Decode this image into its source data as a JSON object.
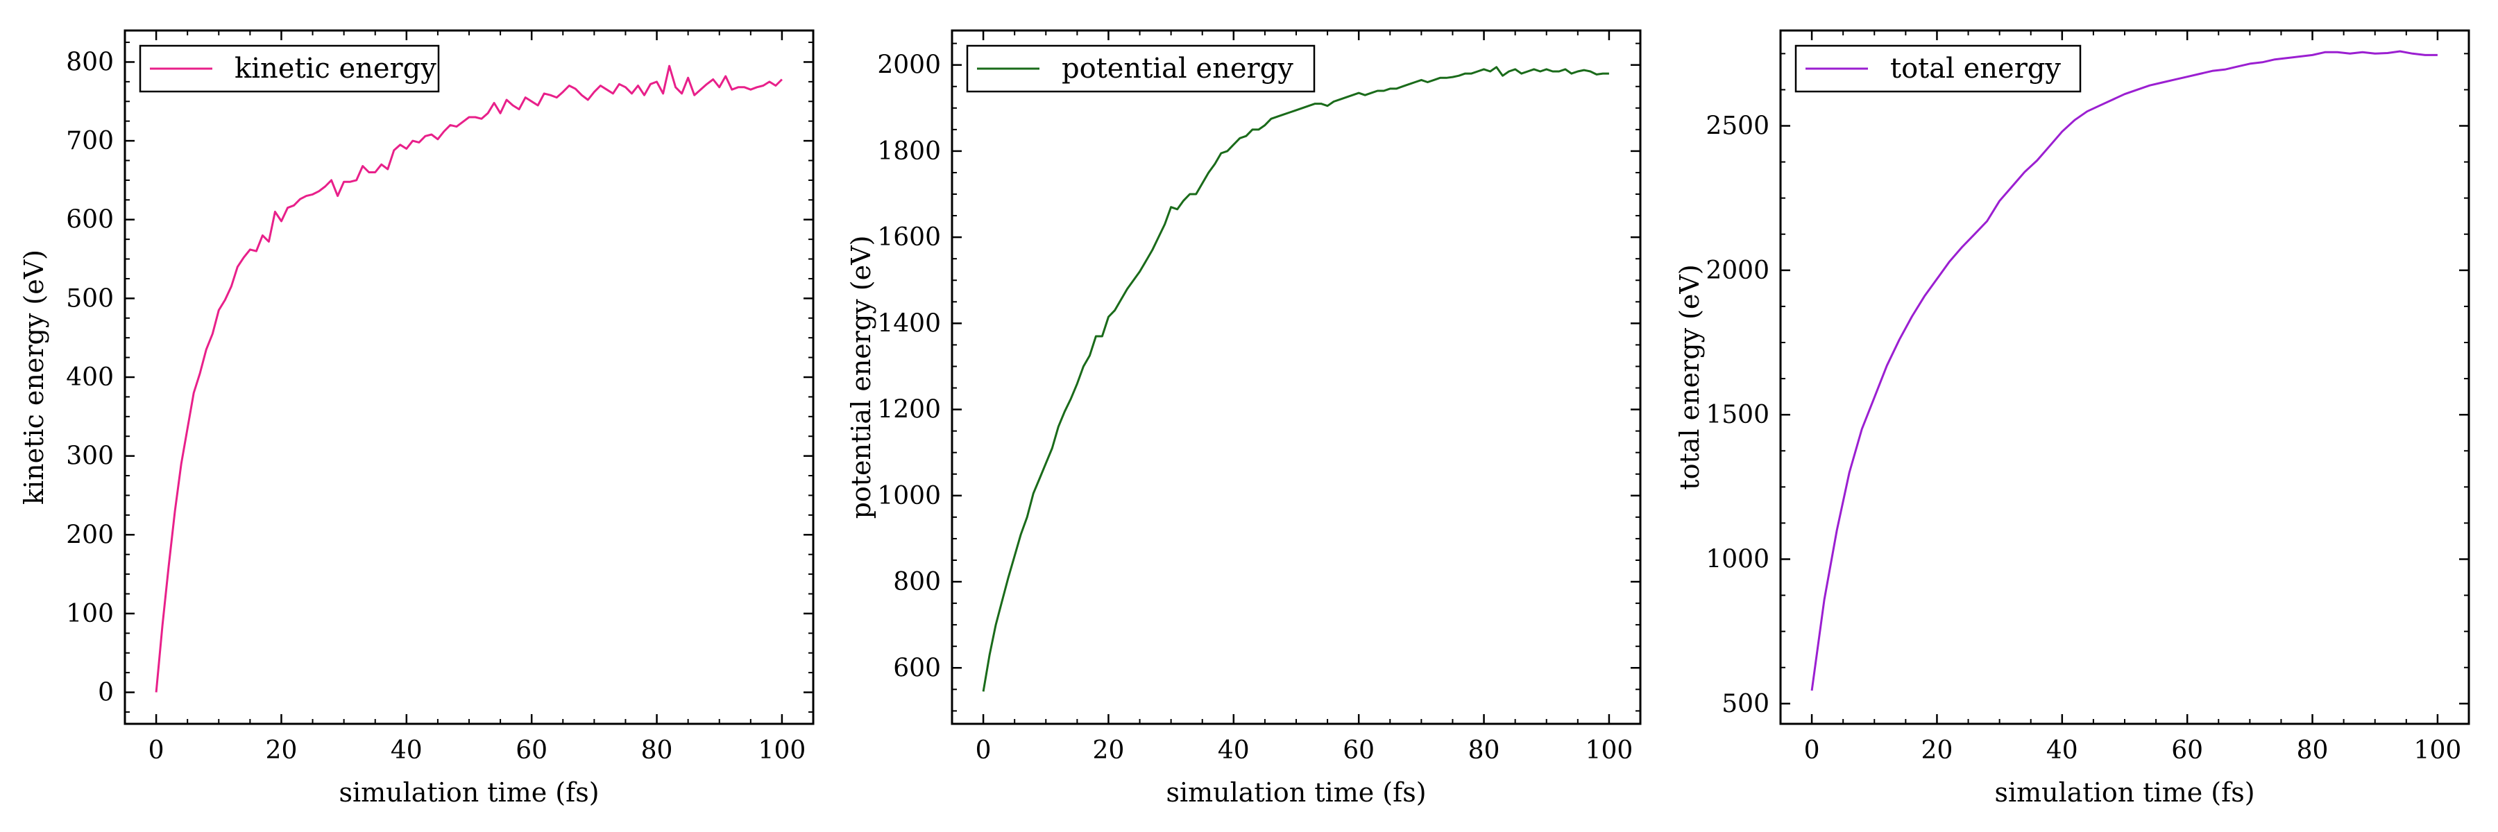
{
  "chart_data": [
    {
      "type": "line",
      "xlabel": "simulation time (fs)",
      "ylabel": "kinetic energy (eV)",
      "xlim": [
        -5,
        105
      ],
      "ylim": [
        -40,
        840
      ],
      "xticks": [
        0,
        20,
        40,
        60,
        80,
        100
      ],
      "yticks": [
        0,
        100,
        200,
        300,
        400,
        500,
        600,
        700,
        800
      ],
      "legend_position": "top-left",
      "grid": false,
      "series": [
        {
          "name": "kinetic energy",
          "color": "#e8208a",
          "x": [
            0,
            1,
            2,
            3,
            4,
            5,
            6,
            7,
            8,
            9,
            10,
            11,
            12,
            13,
            14,
            15,
            16,
            17,
            18,
            19,
            20,
            21,
            22,
            23,
            24,
            25,
            26,
            27,
            28,
            29,
            30,
            31,
            32,
            33,
            34,
            35,
            36,
            37,
            38,
            39,
            40,
            41,
            42,
            43,
            44,
            45,
            46,
            47,
            48,
            49,
            50,
            51,
            52,
            53,
            54,
            55,
            56,
            57,
            58,
            59,
            60,
            61,
            62,
            63,
            64,
            65,
            66,
            67,
            68,
            69,
            70,
            71,
            72,
            73,
            74,
            75,
            76,
            77,
            78,
            79,
            80,
            81,
            82,
            83,
            84,
            85,
            86,
            87,
            88,
            89,
            90,
            91,
            92,
            93,
            94,
            95,
            96,
            97,
            98,
            99,
            100
          ],
          "y": [
            0,
            85,
            160,
            230,
            290,
            335,
            380,
            405,
            435,
            455,
            485,
            498,
            515,
            540,
            552,
            562,
            560,
            580,
            572,
            610,
            598,
            615,
            618,
            626,
            630,
            632,
            636,
            642,
            650,
            630,
            648,
            648,
            650,
            668,
            660,
            660,
            670,
            664,
            688,
            695,
            690,
            700,
            698,
            706,
            708,
            702,
            712,
            720,
            718,
            724,
            730,
            730,
            728,
            735,
            748,
            735,
            752,
            745,
            740,
            755,
            750,
            745,
            760,
            758,
            755,
            762,
            770,
            766,
            758,
            752,
            762,
            770,
            765,
            760,
            772,
            768,
            760,
            770,
            758,
            772,
            775,
            760,
            795,
            768,
            760,
            780,
            758,
            765,
            772,
            778,
            768,
            782,
            765,
            768,
            768,
            765,
            768,
            770,
            775,
            770,
            778
          ]
        }
      ]
    },
    {
      "type": "line",
      "xlabel": "simulation time (fs)",
      "ylabel": "potential energy (eV)",
      "xlim": [
        -5,
        105
      ],
      "ylim": [
        470,
        2080
      ],
      "xticks": [
        0,
        20,
        40,
        60,
        80,
        100
      ],
      "yticks": [
        600,
        800,
        1000,
        1200,
        1400,
        1600,
        1800,
        2000
      ],
      "legend_position": "top-left",
      "grid": false,
      "series": [
        {
          "name": "potential energy",
          "color": "#1a6b1a",
          "x": [
            0,
            1,
            2,
            3,
            4,
            5,
            6,
            7,
            8,
            9,
            10,
            11,
            12,
            13,
            14,
            15,
            16,
            17,
            18,
            19,
            20,
            21,
            22,
            23,
            24,
            25,
            26,
            27,
            28,
            29,
            30,
            31,
            32,
            33,
            34,
            35,
            36,
            37,
            38,
            39,
            40,
            41,
            42,
            43,
            44,
            45,
            46,
            47,
            48,
            49,
            50,
            51,
            52,
            53,
            54,
            55,
            56,
            57,
            58,
            59,
            60,
            61,
            62,
            63,
            64,
            65,
            66,
            67,
            68,
            69,
            70,
            71,
            72,
            73,
            74,
            75,
            76,
            77,
            78,
            79,
            80,
            81,
            82,
            83,
            84,
            85,
            86,
            87,
            88,
            89,
            90,
            91,
            92,
            93,
            94,
            95,
            96,
            97,
            98,
            99,
            100
          ],
          "y": [
            545,
            630,
            700,
            755,
            810,
            860,
            910,
            950,
            1005,
            1040,
            1075,
            1110,
            1160,
            1195,
            1225,
            1260,
            1300,
            1325,
            1370,
            1370,
            1415,
            1430,
            1455,
            1480,
            1500,
            1520,
            1545,
            1570,
            1600,
            1630,
            1670,
            1665,
            1685,
            1700,
            1700,
            1725,
            1750,
            1770,
            1795,
            1800,
            1815,
            1830,
            1835,
            1850,
            1850,
            1860,
            1875,
            1880,
            1885,
            1890,
            1895,
            1900,
            1905,
            1910,
            1910,
            1905,
            1915,
            1920,
            1925,
            1930,
            1935,
            1930,
            1935,
            1940,
            1940,
            1945,
            1945,
            1950,
            1955,
            1960,
            1965,
            1960,
            1965,
            1970,
            1970,
            1972,
            1975,
            1980,
            1980,
            1985,
            1990,
            1985,
            1995,
            1975,
            1985,
            1990,
            1980,
            1985,
            1990,
            1985,
            1990,
            1985,
            1985,
            1990,
            1980,
            1985,
            1988,
            1985,
            1978,
            1980,
            1980
          ]
        }
      ]
    },
    {
      "type": "line",
      "xlabel": "simulation time (fs)",
      "ylabel": "total energy (eV)",
      "xlim": [
        -5,
        105
      ],
      "ylim": [
        430,
        2830
      ],
      "xticks": [
        0,
        20,
        40,
        60,
        80,
        100
      ],
      "yticks": [
        500,
        1000,
        1500,
        2000,
        2500
      ],
      "legend_position": "top-left",
      "grid": false,
      "series": [
        {
          "name": "total energy",
          "color": "#9b1fd1",
          "x": [
            0,
            2,
            4,
            6,
            8,
            10,
            12,
            14,
            16,
            18,
            20,
            22,
            24,
            26,
            28,
            30,
            32,
            34,
            36,
            38,
            40,
            42,
            44,
            46,
            48,
            50,
            52,
            54,
            56,
            58,
            60,
            62,
            64,
            66,
            68,
            70,
            72,
            74,
            76,
            78,
            80,
            82,
            84,
            86,
            88,
            90,
            92,
            94,
            96,
            98,
            100
          ],
          "y": [
            545,
            860,
            1100,
            1300,
            1450,
            1560,
            1670,
            1760,
            1840,
            1910,
            1970,
            2030,
            2080,
            2125,
            2170,
            2240,
            2290,
            2340,
            2380,
            2430,
            2480,
            2520,
            2550,
            2570,
            2590,
            2610,
            2625,
            2640,
            2650,
            2660,
            2670,
            2680,
            2690,
            2695,
            2705,
            2715,
            2720,
            2730,
            2735,
            2740,
            2745,
            2755,
            2755,
            2750,
            2755,
            2750,
            2752,
            2758,
            2750,
            2745,
            2745
          ]
        }
      ]
    }
  ]
}
